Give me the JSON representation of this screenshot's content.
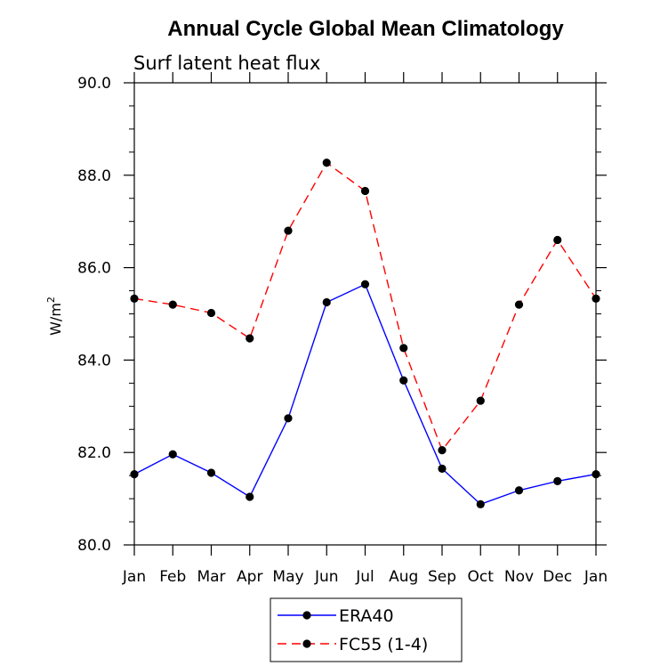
{
  "chart_data": {
    "type": "line",
    "title": "Annual Cycle Global Mean Climatology",
    "subtitle": "Surf latent heat flux",
    "xlabel": "",
    "ylabel": "W/m",
    "ylabel_sup": "2",
    "categories": [
      "Jan",
      "Feb",
      "Mar",
      "Apr",
      "May",
      "Jun",
      "Jul",
      "Aug",
      "Sep",
      "Oct",
      "Nov",
      "Dec",
      "Jan"
    ],
    "ylim": [
      80.0,
      90.0
    ],
    "yticks": [
      "80.0",
      "82.0",
      "84.0",
      "86.0",
      "88.0",
      "90.0"
    ],
    "grid": false,
    "legend_position": "bottom-center",
    "series": [
      {
        "name": "ERA40",
        "color": "#0000ff",
        "dash": "solid",
        "values": [
          81.53,
          81.96,
          81.56,
          81.04,
          82.74,
          85.25,
          85.64,
          83.56,
          81.65,
          80.88,
          81.18,
          81.38,
          81.53
        ]
      },
      {
        "name": "FC55 (1-4)",
        "color": "#ff0000",
        "dash": "dashed",
        "values": [
          85.33,
          85.2,
          85.02,
          84.47,
          86.8,
          88.27,
          87.66,
          84.26,
          82.05,
          83.12,
          85.2,
          86.6,
          85.33
        ]
      }
    ]
  }
}
